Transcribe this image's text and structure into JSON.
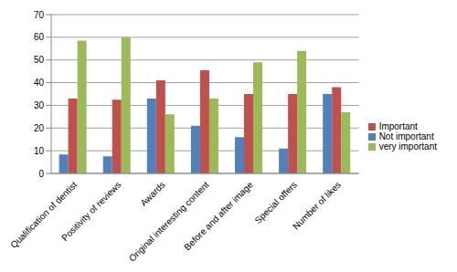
{
  "chart_data": {
    "type": "bar",
    "categories": [
      "Qualification of dentist",
      "Positivity of reviews",
      "Awards",
      "Original interesting content",
      "Before and after image",
      "Special offers",
      "Number of likes"
    ],
    "series": [
      {
        "name": "Not important",
        "color": "#4f81bd",
        "values": [
          8.3,
          7.5,
          33,
          21,
          16,
          11,
          35
        ]
      },
      {
        "name": "Important",
        "color": "#c0504d",
        "values": [
          33,
          32.5,
          41,
          45.5,
          35,
          35,
          38
        ]
      },
      {
        "name": "very important",
        "color": "#9bbb59",
        "values": [
          58.5,
          60,
          26,
          33,
          49,
          54,
          27
        ]
      }
    ],
    "ylim": [
      0,
      70
    ],
    "yticks": [
      0,
      10,
      20,
      30,
      40,
      50,
      60,
      70
    ],
    "grid": true,
    "legend": "right"
  }
}
